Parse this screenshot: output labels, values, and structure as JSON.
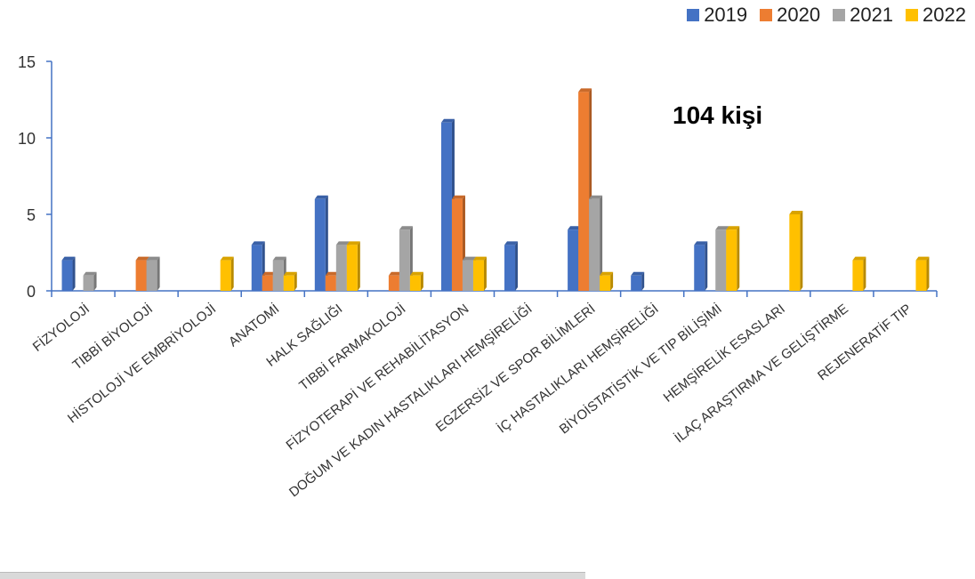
{
  "chart_data": {
    "type": "bar",
    "categories": [
      "FİZYOLOJİ",
      "TIBBİ BİYOLOJİ",
      "HİSTOLOJİ VE EMBRİYOLOJİ",
      "ANATOMİ",
      "HALK SAĞLIĞI",
      "TIBBİ FARMAKOLOJİ",
      "FİZYOTERAPİ  VE REHABİLİTASYON",
      "DOĞUM VE KADIN HASTALIKLARI HEMŞİRELİĞİ",
      "EGZERSİZ VE SPOR BİLİMLERİ",
      "İÇ HASTALIKLARI HEMŞİRELİĞİ",
      "BİYOİSTATİSTİK VE TIP BİLİŞİMİ",
      "HEMŞİRELİK ESASLARI",
      "İLAÇ ARAŞTIRMA VE GELİŞTİRME",
      "REJENERATİF TIP"
    ],
    "series": [
      {
        "name": "2019",
        "color": "#4472c4",
        "values": [
          2,
          0,
          0,
          3,
          6,
          0,
          11,
          3,
          4,
          1,
          3,
          0,
          0,
          0
        ]
      },
      {
        "name": "2020",
        "color": "#ed7d31",
        "values": [
          0,
          2,
          0,
          1,
          1,
          1,
          6,
          0,
          13,
          0,
          0,
          0,
          0,
          0
        ]
      },
      {
        "name": "2021",
        "color": "#a5a5a5",
        "values": [
          1,
          2,
          0,
          2,
          3,
          4,
          2,
          0,
          6,
          0,
          4,
          0,
          0,
          0
        ]
      },
      {
        "name": "2022",
        "color": "#ffc000",
        "values": [
          0,
          0,
          2,
          1,
          3,
          1,
          2,
          0,
          1,
          0,
          4,
          5,
          2,
          2
        ]
      }
    ],
    "ylim": [
      0,
      15
    ],
    "yticks": [
      0,
      5,
      10,
      15
    ],
    "legend_position": "top-right",
    "grid": false,
    "annotation": "104 kişi"
  }
}
